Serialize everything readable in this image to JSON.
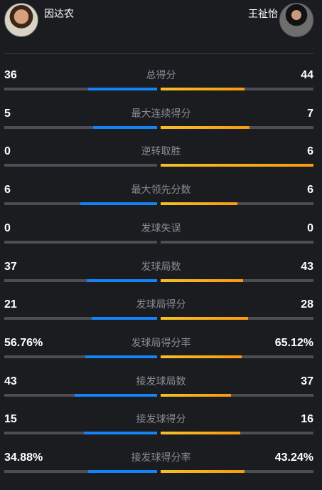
{
  "players": {
    "left": {
      "name": "因达农"
    },
    "right": {
      "name": "王祉怡"
    }
  },
  "colors": {
    "left_bar": "#1582f5",
    "right_bar": "#f7a719",
    "track": "#4c4e54",
    "background": "#1b1c20"
  },
  "stats": [
    {
      "label": "总得分",
      "left": "36",
      "right": "44",
      "left_share": 0.45,
      "right_share": 0.55
    },
    {
      "label": "最大连续得分",
      "left": "5",
      "right": "7",
      "left_share": 0.42,
      "right_share": 0.58
    },
    {
      "label": "逆转取胜",
      "left": "0",
      "right": "6",
      "left_share": 0.0,
      "right_share": 1.0
    },
    {
      "label": "最大领先分数",
      "left": "6",
      "right": "6",
      "left_share": 0.5,
      "right_share": 0.5
    },
    {
      "label": "发球失误",
      "left": "0",
      "right": "0",
      "left_share": 0.0,
      "right_share": 0.0
    },
    {
      "label": "发球局数",
      "left": "37",
      "right": "43",
      "left_share": 0.46,
      "right_share": 0.54
    },
    {
      "label": "发球局得分",
      "left": "21",
      "right": "28",
      "left_share": 0.43,
      "right_share": 0.57
    },
    {
      "label": "发球局得分率",
      "left": "56.76%",
      "right": "65.12%",
      "left_share": 0.47,
      "right_share": 0.53
    },
    {
      "label": "接发球局数",
      "left": "43",
      "right": "37",
      "left_share": 0.54,
      "right_share": 0.46
    },
    {
      "label": "接发球得分",
      "left": "15",
      "right": "16",
      "left_share": 0.48,
      "right_share": 0.52
    },
    {
      "label": "接发球得分率",
      "left": "34.88%",
      "right": "43.24%",
      "left_share": 0.45,
      "right_share": 0.55
    }
  ]
}
